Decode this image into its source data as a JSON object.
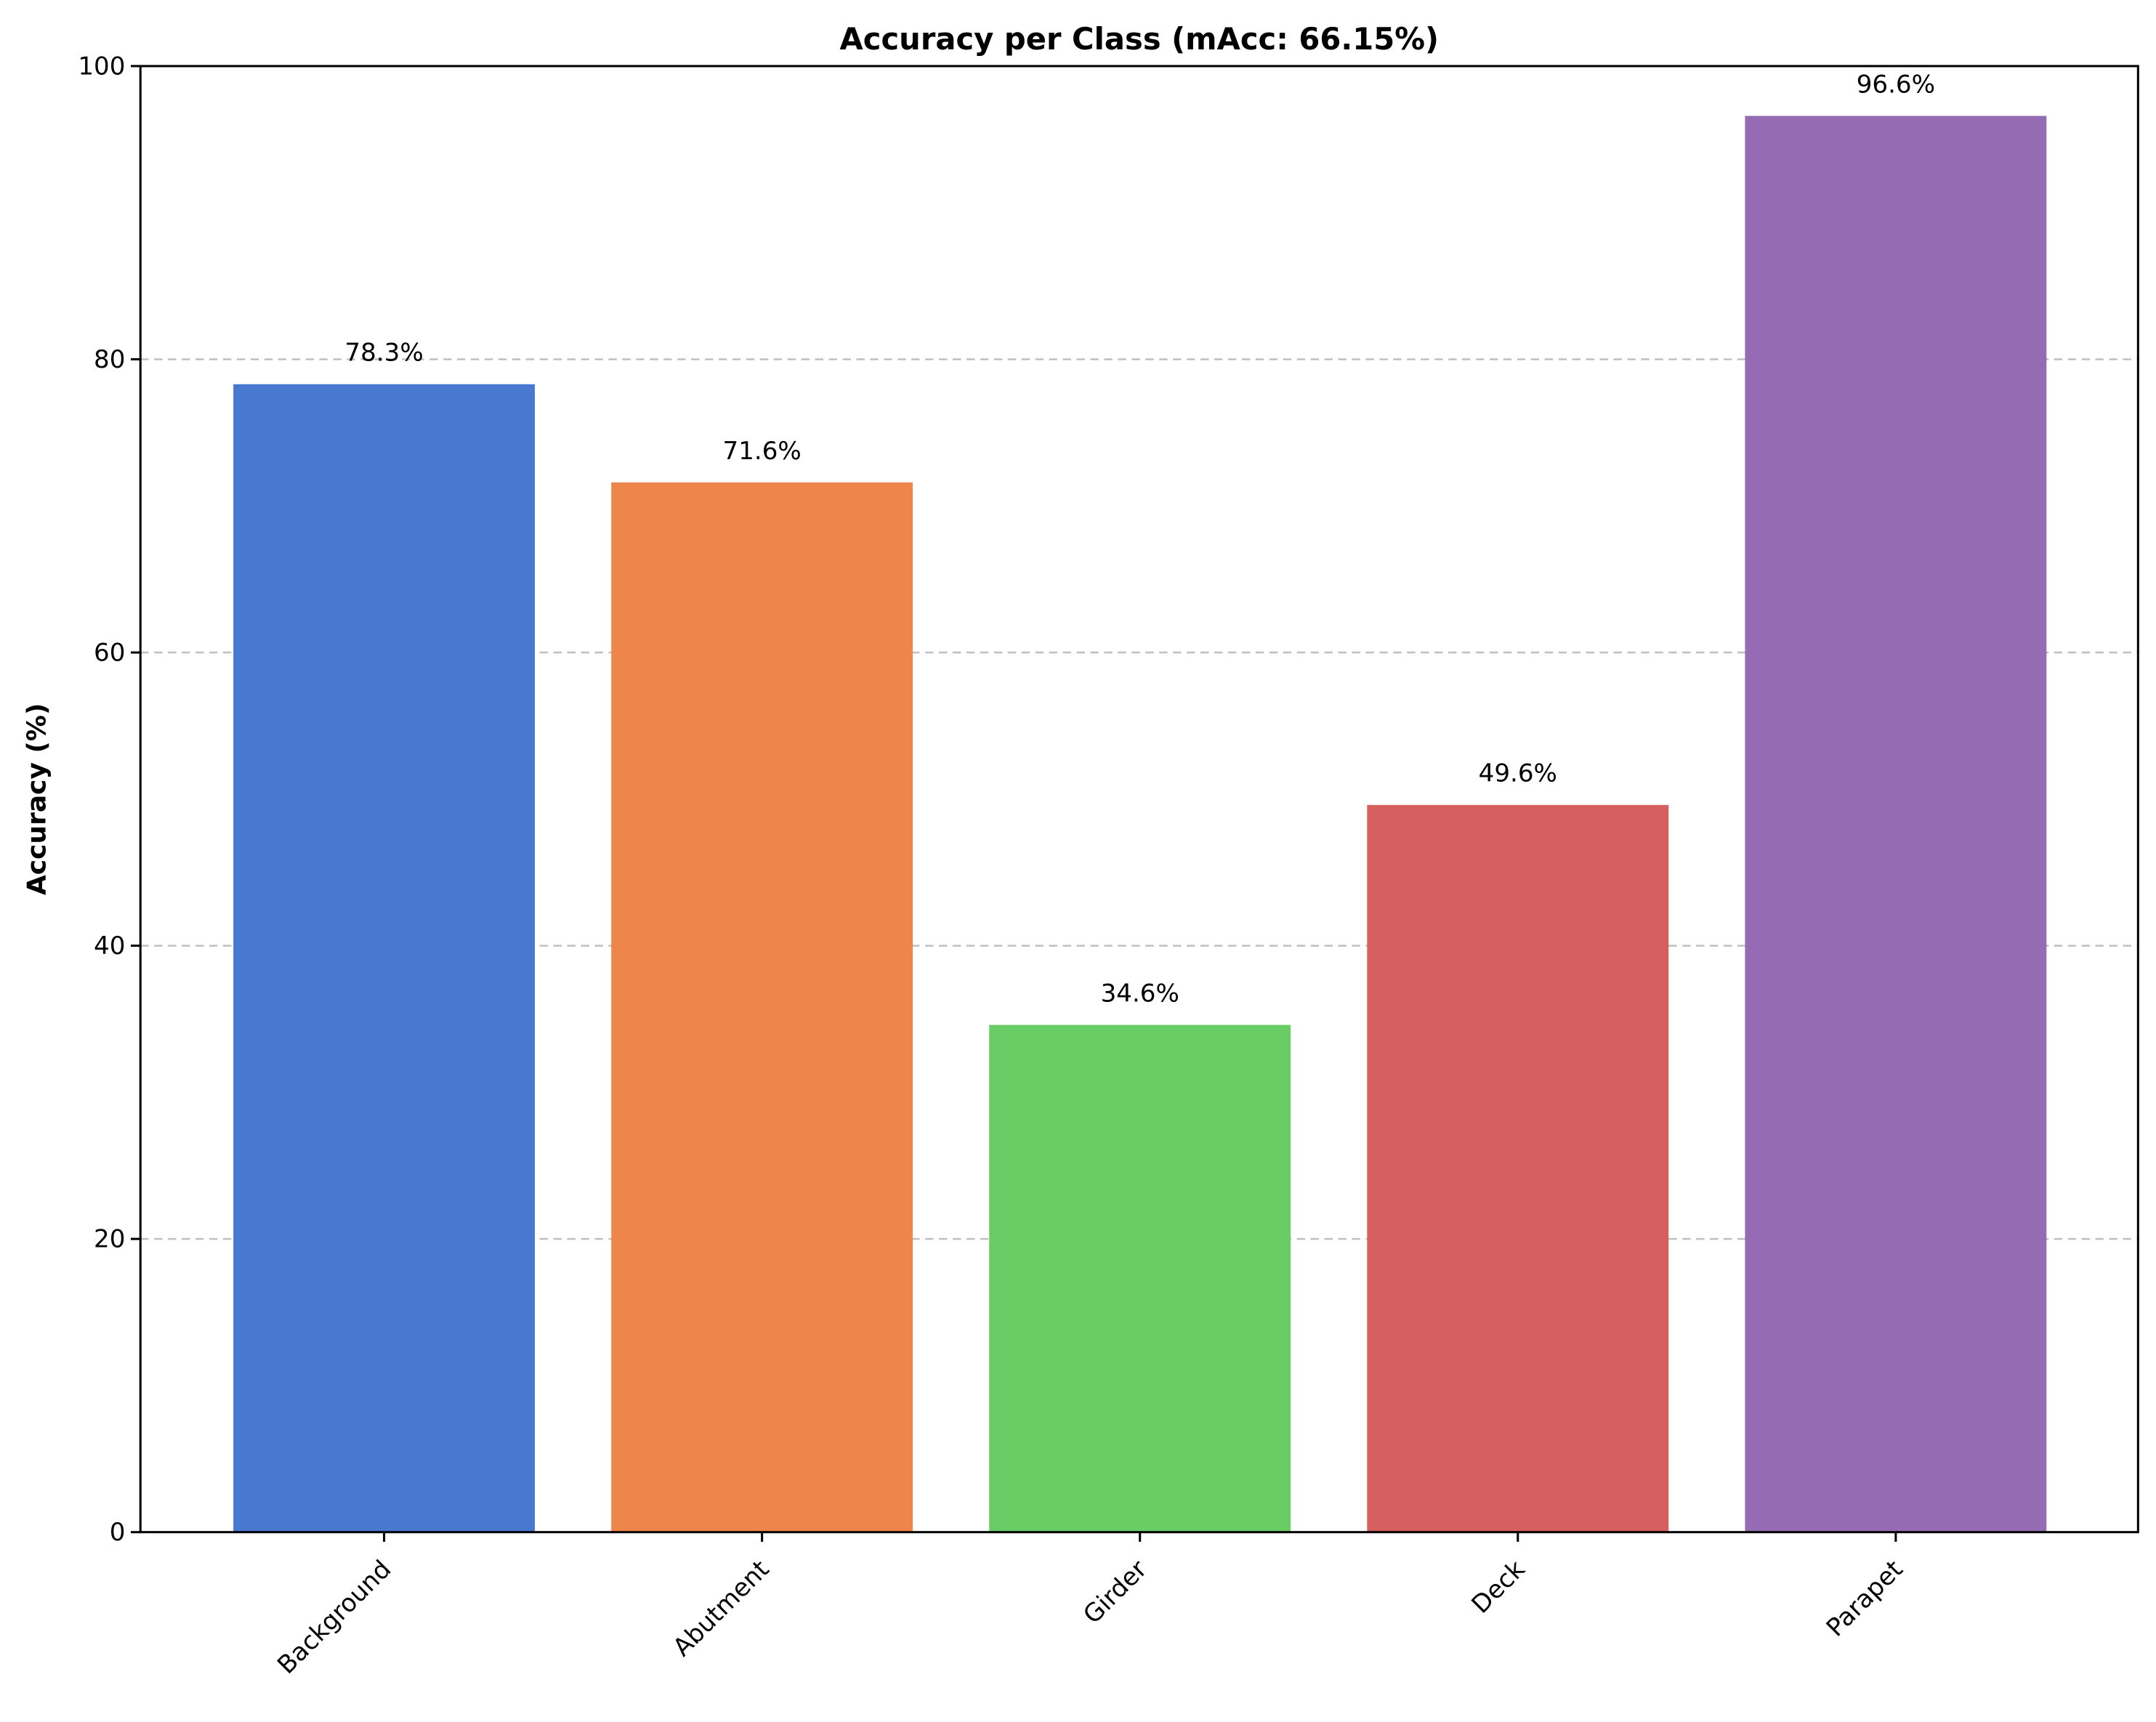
{
  "chart_data": {
    "type": "bar",
    "title": "Accuracy per Class (mAcc: 66.15%)",
    "xlabel": "",
    "ylabel": "Accuracy (%)",
    "categories": [
      "Background",
      "Abutment",
      "Girder",
      "Deck",
      "Parapet"
    ],
    "values": [
      78.3,
      71.6,
      34.6,
      49.6,
      96.6
    ],
    "data_labels": [
      "78.3%",
      "71.6%",
      "34.6%",
      "49.6%",
      "96.6%"
    ],
    "colors": [
      "#4878cf",
      "#ee854a",
      "#6acc65",
      "#d65f5f",
      "#956cb4"
    ],
    "ylim": [
      0,
      100
    ],
    "yticks": [
      0,
      20,
      40,
      60,
      80,
      100
    ],
    "ytick_labels": [
      "0",
      "20",
      "40",
      "60",
      "80",
      "100"
    ],
    "grid": "y-dashed",
    "legend": "none"
  }
}
